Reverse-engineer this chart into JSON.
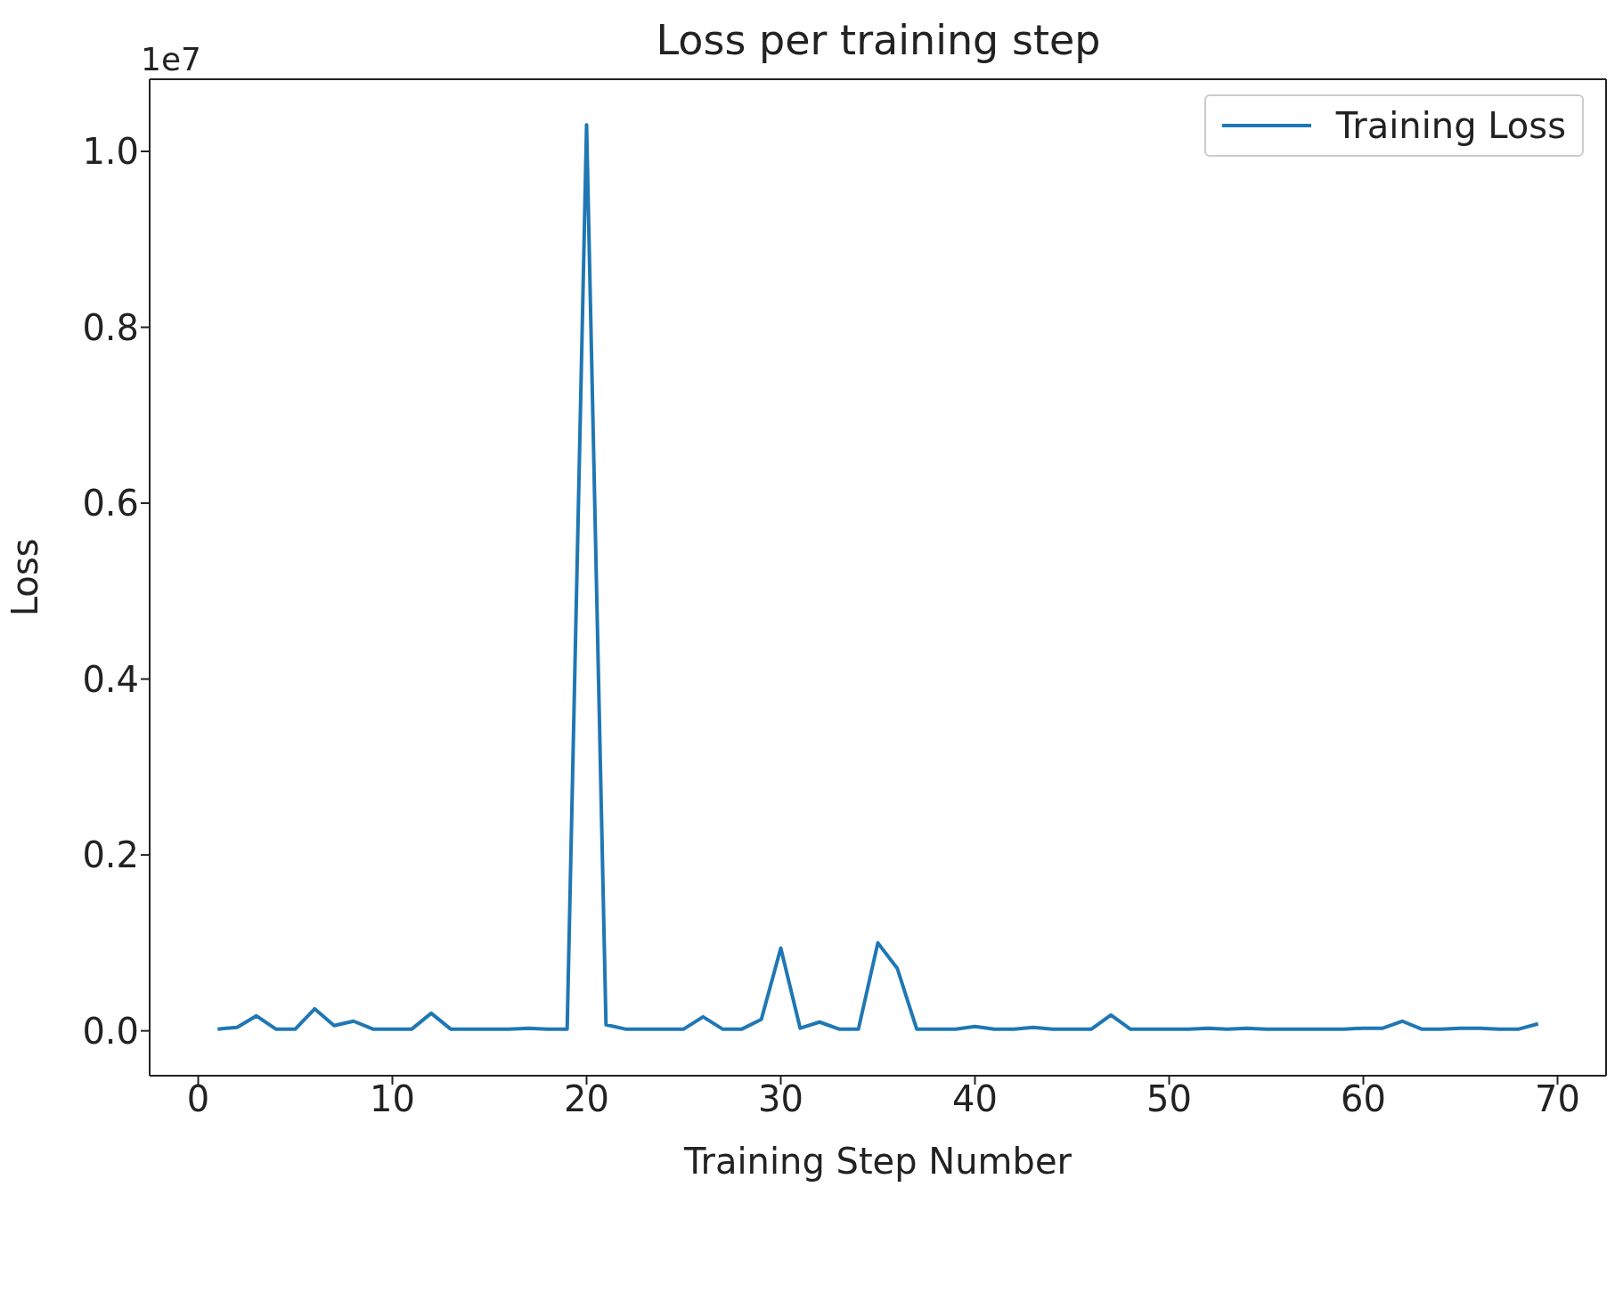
{
  "chart_data": {
    "type": "line",
    "title": "Loss per training step",
    "xlabel": "Training Step Number",
    "ylabel": "Loss",
    "annotations": [
      "1e7"
    ],
    "x": [
      1,
      2,
      3,
      4,
      5,
      6,
      7,
      8,
      9,
      10,
      11,
      12,
      13,
      14,
      15,
      16,
      17,
      18,
      19,
      20,
      21,
      22,
      23,
      24,
      25,
      26,
      27,
      28,
      29,
      30,
      31,
      32,
      33,
      34,
      35,
      36,
      37,
      38,
      39,
      40,
      41,
      42,
      43,
      44,
      45,
      46,
      47,
      48,
      49,
      50,
      51,
      52,
      53,
      54,
      55,
      56,
      57,
      58,
      59,
      60,
      61,
      62,
      63,
      64,
      65,
      66,
      67,
      68,
      69
    ],
    "series": [
      {
        "name": "Training Loss",
        "color": "#1f77b4",
        "values": [
          0.002,
          0.004,
          0.017,
          0.002,
          0.002,
          0.025,
          0.006,
          0.011,
          0.002,
          0.002,
          0.002,
          0.02,
          0.002,
          0.002,
          0.002,
          0.002,
          0.003,
          0.002,
          0.002,
          1.03,
          0.007,
          0.002,
          0.002,
          0.002,
          0.002,
          0.016,
          0.002,
          0.002,
          0.013,
          0.094,
          0.003,
          0.01,
          0.002,
          0.002,
          0.1,
          0.071,
          0.002,
          0.002,
          0.002,
          0.005,
          0.002,
          0.002,
          0.004,
          0.002,
          0.002,
          0.002,
          0.018,
          0.002,
          0.002,
          0.002,
          0.002,
          0.003,
          0.002,
          0.003,
          0.002,
          0.002,
          0.002,
          0.002,
          0.002,
          0.003,
          0.003,
          0.011,
          0.002,
          0.002,
          0.003,
          0.003,
          0.002,
          0.002,
          0.008
        ]
      }
    ],
    "xlim": [
      -2.5,
      72.5
    ],
    "xticks": [
      0,
      10,
      20,
      30,
      40,
      50,
      60,
      70
    ],
    "ylim": [
      -0.051,
      1.082
    ],
    "yticks": [
      {
        "value": 0,
        "label": "0.0"
      },
      0.2,
      0.4,
      0.6,
      0.8,
      {
        "value": 1,
        "label": "1.0"
      }
    ],
    "grid": false,
    "legend": "top right",
    "marker": "none",
    "line_style": "solid"
  }
}
